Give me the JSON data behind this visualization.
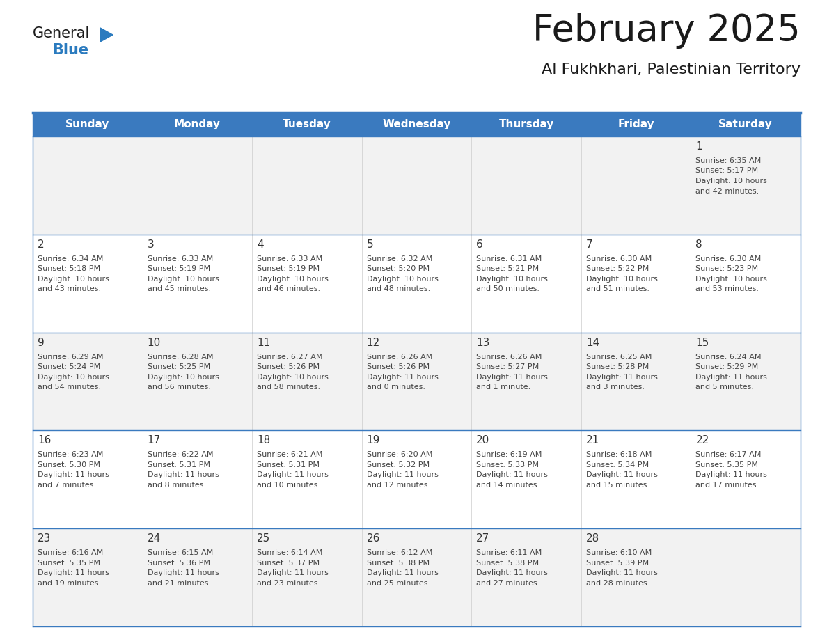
{
  "title": "February 2025",
  "subtitle": "Al Fukhkhari, Palestinian Territory",
  "days_of_week": [
    "Sunday",
    "Monday",
    "Tuesday",
    "Wednesday",
    "Thursday",
    "Friday",
    "Saturday"
  ],
  "header_bg": "#3a7abf",
  "header_text": "#ffffff",
  "cell_bg_white": "#ffffff",
  "cell_bg_gray": "#f2f2f2",
  "row_line_color": "#3a7abf",
  "text_color": "#444444",
  "day_num_color": "#333333",
  "outer_border_color": "#3a7abf",
  "calendar_data": [
    [
      {
        "day": null,
        "sunrise": null,
        "sunset": null,
        "daylight": null
      },
      {
        "day": null,
        "sunrise": null,
        "sunset": null,
        "daylight": null
      },
      {
        "day": null,
        "sunrise": null,
        "sunset": null,
        "daylight": null
      },
      {
        "day": null,
        "sunrise": null,
        "sunset": null,
        "daylight": null
      },
      {
        "day": null,
        "sunrise": null,
        "sunset": null,
        "daylight": null
      },
      {
        "day": null,
        "sunrise": null,
        "sunset": null,
        "daylight": null
      },
      {
        "day": 1,
        "sunrise": "6:35 AM",
        "sunset": "5:17 PM",
        "daylight": "10 hours\nand 42 minutes."
      }
    ],
    [
      {
        "day": 2,
        "sunrise": "6:34 AM",
        "sunset": "5:18 PM",
        "daylight": "10 hours\nand 43 minutes."
      },
      {
        "day": 3,
        "sunrise": "6:33 AM",
        "sunset": "5:19 PM",
        "daylight": "10 hours\nand 45 minutes."
      },
      {
        "day": 4,
        "sunrise": "6:33 AM",
        "sunset": "5:19 PM",
        "daylight": "10 hours\nand 46 minutes."
      },
      {
        "day": 5,
        "sunrise": "6:32 AM",
        "sunset": "5:20 PM",
        "daylight": "10 hours\nand 48 minutes."
      },
      {
        "day": 6,
        "sunrise": "6:31 AM",
        "sunset": "5:21 PM",
        "daylight": "10 hours\nand 50 minutes."
      },
      {
        "day": 7,
        "sunrise": "6:30 AM",
        "sunset": "5:22 PM",
        "daylight": "10 hours\nand 51 minutes."
      },
      {
        "day": 8,
        "sunrise": "6:30 AM",
        "sunset": "5:23 PM",
        "daylight": "10 hours\nand 53 minutes."
      }
    ],
    [
      {
        "day": 9,
        "sunrise": "6:29 AM",
        "sunset": "5:24 PM",
        "daylight": "10 hours\nand 54 minutes."
      },
      {
        "day": 10,
        "sunrise": "6:28 AM",
        "sunset": "5:25 PM",
        "daylight": "10 hours\nand 56 minutes."
      },
      {
        "day": 11,
        "sunrise": "6:27 AM",
        "sunset": "5:26 PM",
        "daylight": "10 hours\nand 58 minutes."
      },
      {
        "day": 12,
        "sunrise": "6:26 AM",
        "sunset": "5:26 PM",
        "daylight": "11 hours\nand 0 minutes."
      },
      {
        "day": 13,
        "sunrise": "6:26 AM",
        "sunset": "5:27 PM",
        "daylight": "11 hours\nand 1 minute."
      },
      {
        "day": 14,
        "sunrise": "6:25 AM",
        "sunset": "5:28 PM",
        "daylight": "11 hours\nand 3 minutes."
      },
      {
        "day": 15,
        "sunrise": "6:24 AM",
        "sunset": "5:29 PM",
        "daylight": "11 hours\nand 5 minutes."
      }
    ],
    [
      {
        "day": 16,
        "sunrise": "6:23 AM",
        "sunset": "5:30 PM",
        "daylight": "11 hours\nand 7 minutes."
      },
      {
        "day": 17,
        "sunrise": "6:22 AM",
        "sunset": "5:31 PM",
        "daylight": "11 hours\nand 8 minutes."
      },
      {
        "day": 18,
        "sunrise": "6:21 AM",
        "sunset": "5:31 PM",
        "daylight": "11 hours\nand 10 minutes."
      },
      {
        "day": 19,
        "sunrise": "6:20 AM",
        "sunset": "5:32 PM",
        "daylight": "11 hours\nand 12 minutes."
      },
      {
        "day": 20,
        "sunrise": "6:19 AM",
        "sunset": "5:33 PM",
        "daylight": "11 hours\nand 14 minutes."
      },
      {
        "day": 21,
        "sunrise": "6:18 AM",
        "sunset": "5:34 PM",
        "daylight": "11 hours\nand 15 minutes."
      },
      {
        "day": 22,
        "sunrise": "6:17 AM",
        "sunset": "5:35 PM",
        "daylight": "11 hours\nand 17 minutes."
      }
    ],
    [
      {
        "day": 23,
        "sunrise": "6:16 AM",
        "sunset": "5:35 PM",
        "daylight": "11 hours\nand 19 minutes."
      },
      {
        "day": 24,
        "sunrise": "6:15 AM",
        "sunset": "5:36 PM",
        "daylight": "11 hours\nand 21 minutes."
      },
      {
        "day": 25,
        "sunrise": "6:14 AM",
        "sunset": "5:37 PM",
        "daylight": "11 hours\nand 23 minutes."
      },
      {
        "day": 26,
        "sunrise": "6:12 AM",
        "sunset": "5:38 PM",
        "daylight": "11 hours\nand 25 minutes."
      },
      {
        "day": 27,
        "sunrise": "6:11 AM",
        "sunset": "5:38 PM",
        "daylight": "11 hours\nand 27 minutes."
      },
      {
        "day": 28,
        "sunrise": "6:10 AM",
        "sunset": "5:39 PM",
        "daylight": "11 hours\nand 28 minutes."
      },
      {
        "day": null,
        "sunrise": null,
        "sunset": null,
        "daylight": null
      }
    ]
  ],
  "logo_general_color": "#1a1a1a",
  "logo_blue_color": "#2b7bbf",
  "logo_triangle_color": "#2b7bbf"
}
